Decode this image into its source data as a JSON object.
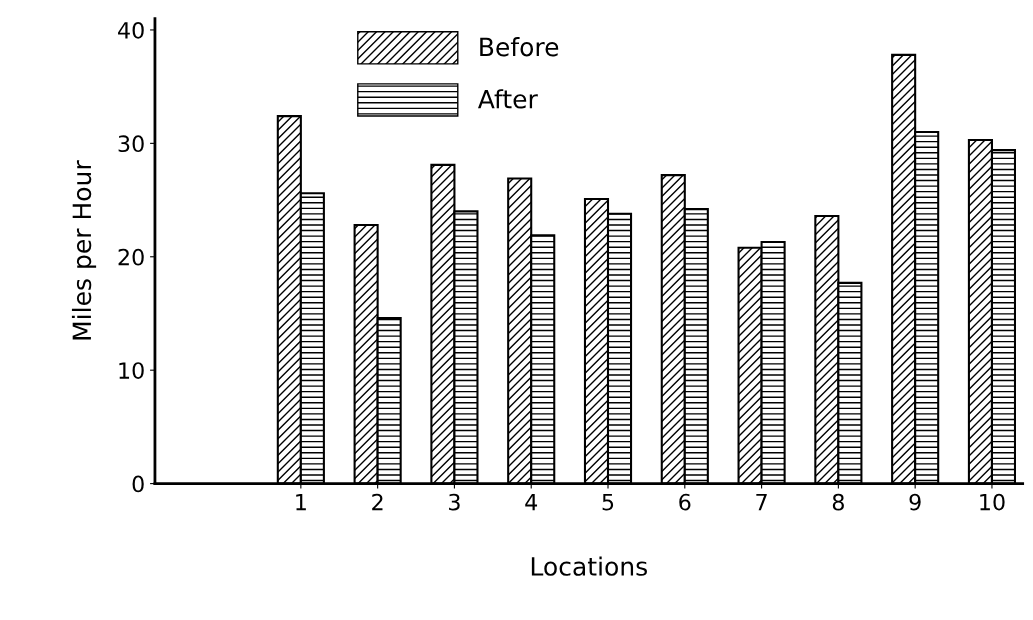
{
  "chart_data": {
    "type": "bar",
    "xlabel": "Locations",
    "ylabel": "Miles per Hour",
    "categories": [
      "1",
      "2",
      "3",
      "4",
      "5",
      "6",
      "7",
      "8",
      "9",
      "10"
    ],
    "series": [
      {
        "name": "Before",
        "color": "#000000",
        "values": [
          32.4,
          22.8,
          28.1,
          26.9,
          25.1,
          27.2,
          20.8,
          23.6,
          37.8,
          30.3
        ]
      },
      {
        "name": "After",
        "color": "#000000",
        "values": [
          25.6,
          14.6,
          24.0,
          21.9,
          23.8,
          24.2,
          21.3,
          17.7,
          31.0,
          29.4
        ]
      }
    ],
    "ylim": [
      0,
      41
    ],
    "yticks": [
      0,
      10,
      20,
      30,
      40
    ],
    "grid": false,
    "legend": "top"
  }
}
